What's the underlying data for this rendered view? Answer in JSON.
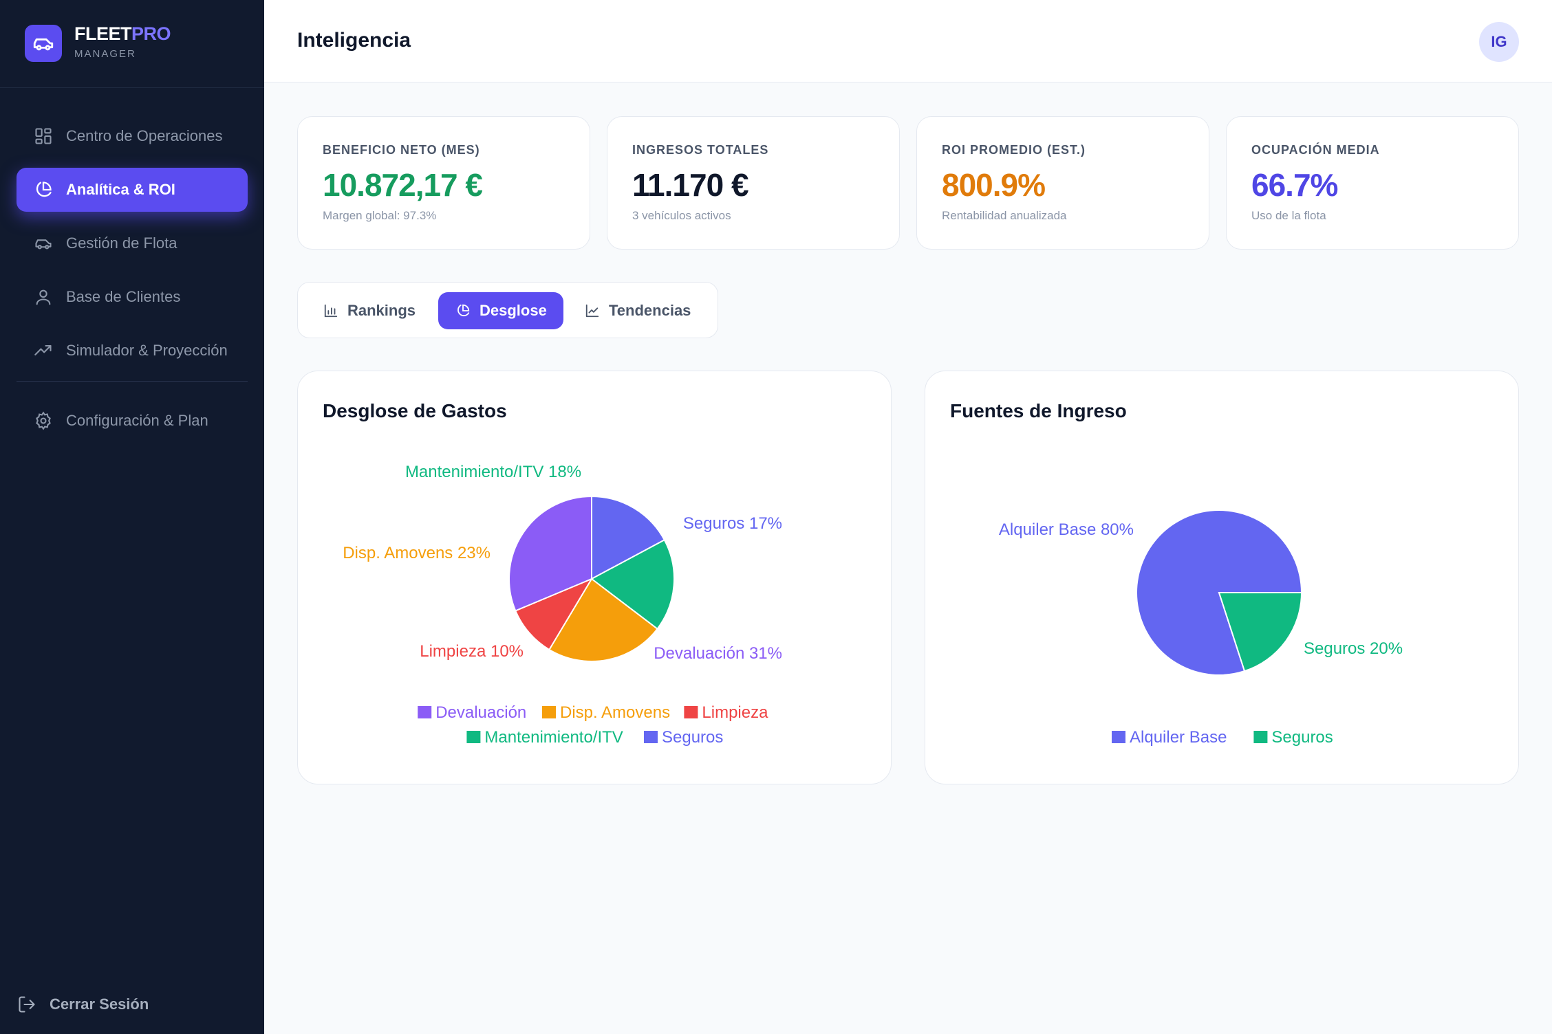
{
  "sidebar": {
    "brand": {
      "name_main": "FLEET",
      "name_accent": "PRO",
      "subtitle": "MANAGER"
    },
    "items": [
      {
        "label": "Centro de Operaciones",
        "icon": "dashboard-grid-icon"
      },
      {
        "label": "Analítica & ROI",
        "icon": "pie-chart-icon"
      },
      {
        "label": "Gestión de Flota",
        "icon": "car-icon"
      },
      {
        "label": "Base de Clientes",
        "icon": "user-icon"
      },
      {
        "label": "Simulador & Proyección",
        "icon": "trending-up-icon"
      },
      {
        "label": "Configuración & Plan",
        "icon": "gear-icon"
      }
    ],
    "logout_label": "Cerrar Sesión"
  },
  "header": {
    "title": "Inteligencia",
    "avatar_initials": "IG"
  },
  "kpis": [
    {
      "label": "BENEFICIO NETO (MES)",
      "value": "10.872,17 €",
      "sub": "Margen global: 97.3%",
      "color": "#169c5e"
    },
    {
      "label": "INGRESOS TOTALES",
      "value": "11.170 €",
      "sub": "3 vehículos activos",
      "color": "#0f172a"
    },
    {
      "label": "ROI PROMEDIO (EST.)",
      "value": "800.9%",
      "sub": "Rentabilidad anualizada",
      "color": "#e07b0a"
    },
    {
      "label": "OCUPACIÓN MEDIA",
      "value": "66.7%",
      "sub": "Uso de la flota",
      "color": "#4f46e5"
    }
  ],
  "tabs": [
    {
      "label": "Rankings",
      "icon": "bar-chart-icon"
    },
    {
      "label": "Desglose",
      "icon": "pie-chart-icon"
    },
    {
      "label": "Tendencias",
      "icon": "line-chart-icon"
    }
  ],
  "chart_data": [
    {
      "type": "pie",
      "title": "Desglose de Gastos",
      "slices": [
        {
          "name": "Devaluación",
          "label": "Devaluación 31%",
          "value": 31,
          "color": "#8b5cf6"
        },
        {
          "name": "Disp. Amovens",
          "label": "Disp. Amovens 23%",
          "value": 23,
          "color": "#f59e0b"
        },
        {
          "name": "Limpieza",
          "label": "Limpieza 10%",
          "value": 10,
          "color": "#ef4444"
        },
        {
          "name": "Mantenimiento/ITV",
          "label": "Mantenimiento/ITV 18%",
          "value": 18,
          "color": "#10b981"
        },
        {
          "name": "Seguros",
          "label": "Seguros 17%",
          "value": 17,
          "color": "#6366f1"
        }
      ],
      "legend_position": "bottom"
    },
    {
      "type": "pie",
      "title": "Fuentes de Ingreso",
      "slices": [
        {
          "name": "Alquiler Base",
          "label": "Alquiler Base 80%",
          "value": 80,
          "color": "#6366f1"
        },
        {
          "name": "Seguros",
          "label": "Seguros 20%",
          "value": 20,
          "color": "#10b981"
        }
      ],
      "legend_position": "bottom"
    }
  ]
}
